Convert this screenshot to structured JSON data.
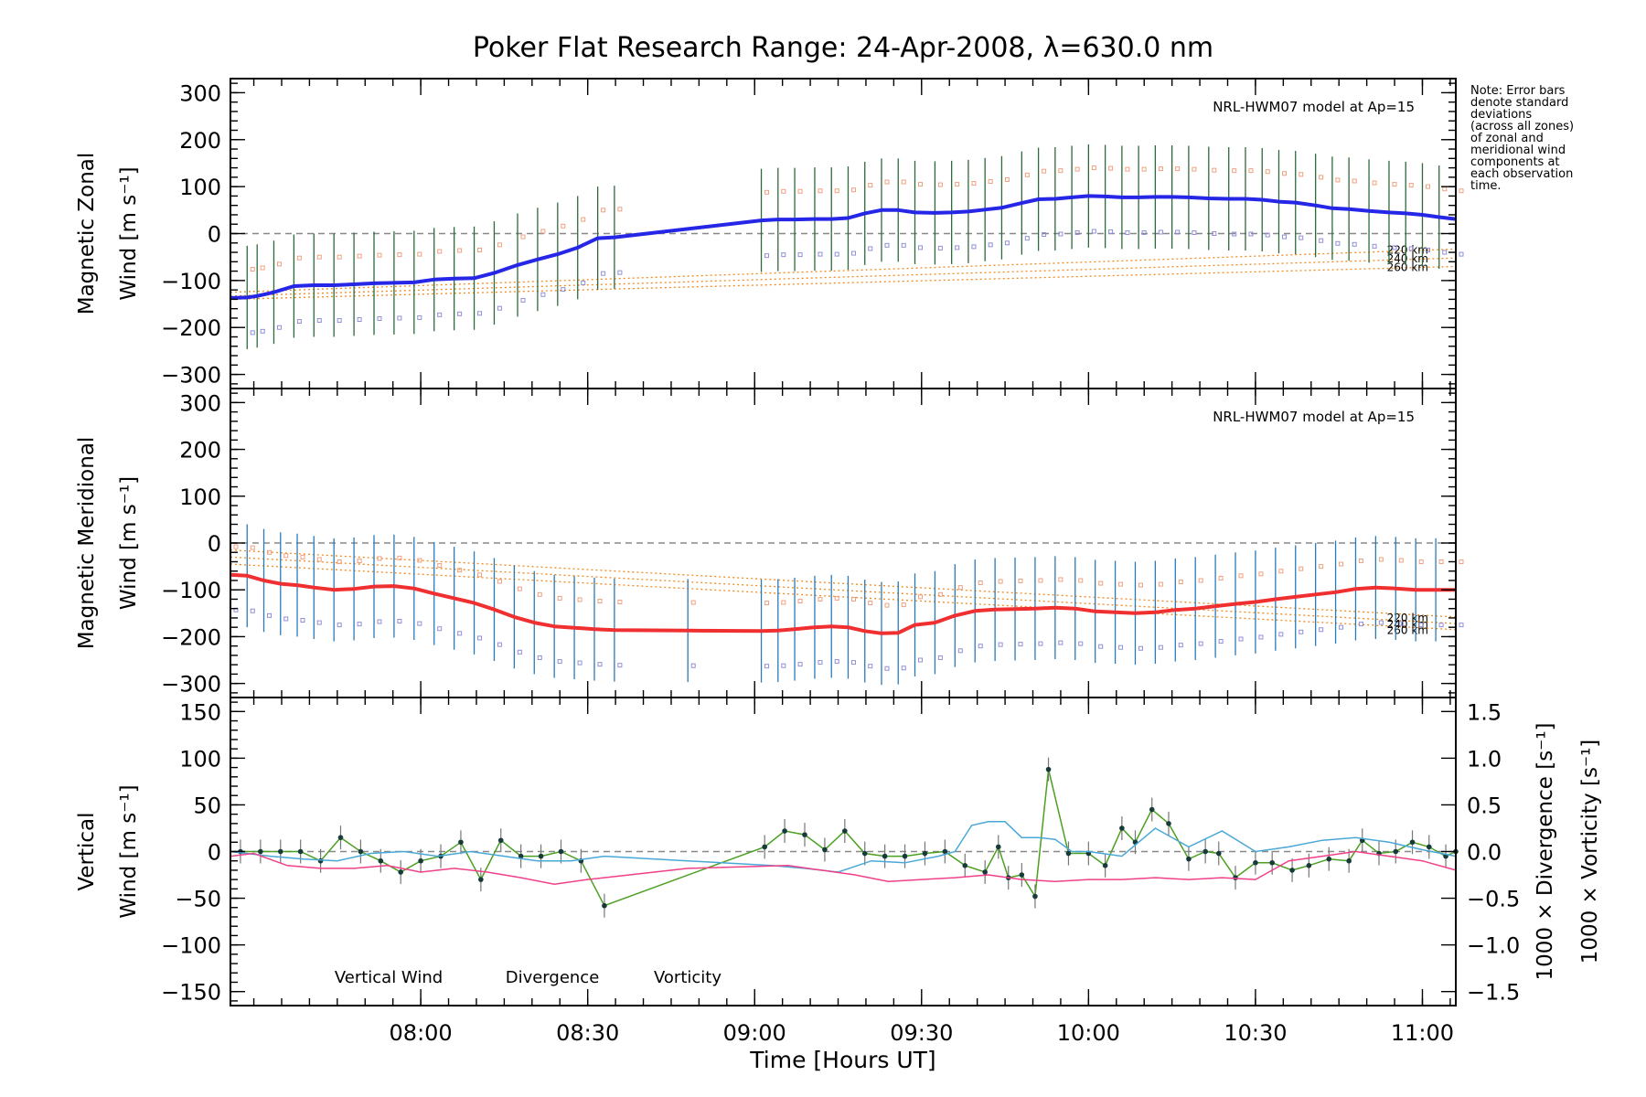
{
  "chart_data": {
    "type": "line",
    "title": "Poker Flat Research Range: 24-Apr-2008, λ=630.0 nm",
    "note": [
      "Note: Error bars",
      "denote standard",
      "deviations",
      "(across all zones)",
      "of zonal and",
      "meridional wind",
      "components at",
      "each observation",
      "time."
    ],
    "xlabel": "Time [Hours UT]",
    "xlim": [
      7.43,
      11.1
    ],
    "xticks": [
      {
        "value": 8.0,
        "label": "08:00"
      },
      {
        "value": 8.5,
        "label": "08:30"
      },
      {
        "value": 9.0,
        "label": "09:00"
      },
      {
        "value": 9.5,
        "label": "09:30"
      },
      {
        "value": 10.0,
        "label": "10:00"
      },
      {
        "value": 10.5,
        "label": "10:30"
      },
      {
        "value": 11.0,
        "label": "11:00"
      }
    ],
    "panels": [
      {
        "id": "zonal",
        "ylabel": [
          "Magnetic Zonal",
          "Wind [m s⁻¹]"
        ],
        "ylim": [
          -330,
          330
        ],
        "yticks": [
          -300,
          -200,
          -100,
          0,
          100,
          200,
          300
        ],
        "model_label": "NRL-HWM07 model at Ap=15",
        "model_lines": [
          {
            "name": "220 km",
            "start": -125,
            "end": -33
          },
          {
            "name": "240 km",
            "start": -133,
            "end": -52
          },
          {
            "name": "260 km",
            "start": -140,
            "end": -70
          }
        ],
        "series": [
          {
            "name": "Magnetic Zonal Wind",
            "color": "#2626e6",
            "x": [
              7.43,
              7.48,
              7.51,
              7.56,
              7.62,
              7.68,
              7.74,
              7.8,
              7.86,
              7.92,
              7.98,
              8.04,
              8.1,
              8.16,
              8.22,
              8.29,
              8.35,
              8.41,
              8.47,
              8.53,
              8.58,
              9.02,
              9.07,
              9.12,
              9.18,
              9.23,
              9.28,
              9.33,
              9.38,
              9.43,
              9.48,
              9.54,
              9.59,
              9.64,
              9.69,
              9.74,
              9.8,
              9.85,
              9.9,
              9.95,
              10.0,
              10.05,
              10.1,
              10.15,
              10.2,
              10.25,
              10.3,
              10.36,
              10.42,
              10.47,
              10.52,
              10.57,
              10.62,
              10.68,
              10.73,
              10.78,
              10.84,
              10.9,
              10.95,
              11.0,
              11.05,
              11.1
            ],
            "y": [
              -137,
              -136,
              -133,
              -125,
              -112,
              -110,
              -110,
              -108,
              -106,
              -105,
              -104,
              -98,
              -96,
              -95,
              -84,
              -67,
              -55,
              -44,
              -30,
              -10,
              -8,
              28,
              30,
              30,
              31,
              31,
              33,
              43,
              50,
              50,
              45,
              44,
              45,
              47,
              51,
              55,
              65,
              73,
              74,
              77,
              80,
              79,
              77,
              77,
              78,
              78,
              77,
              75,
              74,
              74,
              72,
              68,
              66,
              60,
              54,
              52,
              48,
              45,
              43,
              40,
              35,
              31
            ]
          }
        ]
      },
      {
        "id": "meridional",
        "ylabel": [
          "Magnetic Meridional",
          "Wind [m s⁻¹]"
        ],
        "ylim": [
          -330,
          330
        ],
        "yticks": [
          -300,
          -200,
          -100,
          0,
          100,
          200,
          300
        ],
        "model_label": "NRL-HWM07 model at Ap=15",
        "model_lines": [
          {
            "name": "220 km",
            "start": -15,
            "end": -158
          },
          {
            "name": "240 km",
            "start": -30,
            "end": -172
          },
          {
            "name": "260 km",
            "start": -45,
            "end": -185
          }
        ],
        "series": [
          {
            "name": "Magnetic Meridional Wind",
            "color": "#f03030",
            "x": [
              7.43,
              7.48,
              7.53,
              7.58,
              7.63,
              7.68,
              7.74,
              7.8,
              7.86,
              7.92,
              7.98,
              8.04,
              8.1,
              8.16,
              8.22,
              8.28,
              8.34,
              8.4,
              8.46,
              8.52,
              8.58,
              8.8,
              9.02,
              9.07,
              9.12,
              9.18,
              9.23,
              9.28,
              9.33,
              9.38,
              9.43,
              9.48,
              9.54,
              9.6,
              9.66,
              9.72,
              9.78,
              9.84,
              9.9,
              9.96,
              10.02,
              10.08,
              10.14,
              10.2,
              10.26,
              10.32,
              10.38,
              10.44,
              10.5,
              10.56,
              10.62,
              10.68,
              10.74,
              10.8,
              10.86,
              10.92,
              10.98,
              11.04,
              11.1
            ],
            "y": [
              -68,
              -70,
              -80,
              -87,
              -90,
              -95,
              -100,
              -98,
              -93,
              -92,
              -97,
              -108,
              -118,
              -128,
              -142,
              -158,
              -170,
              -178,
              -181,
              -184,
              -186,
              -187,
              -188,
              -187,
              -184,
              -180,
              -178,
              -180,
              -188,
              -193,
              -192,
              -175,
              -170,
              -155,
              -145,
              -142,
              -141,
              -140,
              -138,
              -140,
              -146,
              -148,
              -150,
              -148,
              -143,
              -140,
              -135,
              -130,
              -126,
              -120,
              -115,
              -110,
              -105,
              -98,
              -95,
              -97,
              -100,
              -100,
              -100
            ]
          }
        ]
      },
      {
        "id": "vertical",
        "ylabel": [
          "Vertical",
          "Wind [m s⁻¹]"
        ],
        "ylim": [
          -165,
          165
        ],
        "yticks": [
          -150,
          -100,
          -50,
          0,
          50,
          100,
          150
        ],
        "ylabel_right_1": "1000 × Divergence [s⁻¹]",
        "ylabel_right_2": "1000 × Vorticity [s⁻¹]",
        "y2lim": [
          -1.65,
          1.65
        ],
        "y2ticks": [
          -1.5,
          -1.0,
          -0.5,
          0.0,
          0.5,
          1.0,
          1.5
        ],
        "y2ticklabels": [
          "−1.5",
          "−1.0",
          "−0.5",
          "0.0",
          "0.5",
          "1.0",
          "1.5"
        ],
        "legend": [
          "Vertical Wind",
          "Divergence",
          "Vorticity"
        ],
        "series": [
          {
            "name": "Vertical Wind",
            "color": "#4aa020",
            "axis": "left",
            "x": [
              7.46,
              7.52,
              7.58,
              7.64,
              7.7,
              7.76,
              7.82,
              7.88,
              7.94,
              8.0,
              8.06,
              8.12,
              8.18,
              8.24,
              8.3,
              8.36,
              8.42,
              8.48,
              8.55,
              9.03,
              9.09,
              9.15,
              9.21,
              9.27,
              9.33,
              9.39,
              9.45,
              9.51,
              9.57,
              9.63,
              9.69,
              9.73,
              9.76,
              9.8,
              9.84,
              9.88,
              9.94,
              10.0,
              10.05,
              10.1,
              10.14,
              10.19,
              10.24,
              10.3,
              10.35,
              10.39,
              10.44,
              10.5,
              10.55,
              10.61,
              10.66,
              10.72,
              10.78,
              10.82,
              10.87,
              10.92,
              10.97,
              11.02,
              11.07,
              11.1
            ],
            "y": [
              0,
              0,
              0,
              0,
              -10,
              15,
              0,
              -10,
              -22,
              -10,
              -5,
              10,
              -30,
              12,
              -5,
              -5,
              0,
              -10,
              -58,
              5,
              22,
              18,
              2,
              22,
              -2,
              -5,
              -5,
              -2,
              0,
              -15,
              -22,
              5,
              -28,
              -25,
              -48,
              88,
              -2,
              -2,
              -15,
              25,
              10,
              45,
              30,
              -8,
              0,
              -2,
              -28,
              -12,
              -12,
              -20,
              -15,
              -8,
              -10,
              12,
              -2,
              0,
              10,
              5,
              -5,
              0
            ]
          },
          {
            "name": "Divergence",
            "color": "#4aa8d8",
            "axis": "right",
            "x": [
              7.43,
              7.55,
              7.65,
              7.75,
              7.85,
              7.95,
              8.05,
              8.15,
              8.25,
              8.35,
              8.45,
              8.55,
              8.8,
              9.05,
              9.15,
              9.25,
              9.35,
              9.45,
              9.55,
              9.6,
              9.65,
              9.7,
              9.75,
              9.8,
              9.85,
              9.9,
              9.95,
              10.0,
              10.1,
              10.2,
              10.3,
              10.4,
              10.5,
              10.6,
              10.7,
              10.8,
              10.9,
              11.0,
              11.1
            ],
            "y": [
              0.0,
              -0.05,
              -0.08,
              -0.1,
              -0.02,
              0.0,
              -0.05,
              0.0,
              -0.05,
              -0.1,
              -0.1,
              -0.05,
              -0.1,
              -0.15,
              -0.18,
              -0.22,
              -0.1,
              -0.12,
              -0.05,
              0.0,
              0.28,
              0.32,
              0.32,
              0.15,
              0.15,
              0.13,
              0.0,
              0.0,
              -0.05,
              0.25,
              0.05,
              0.22,
              0.0,
              0.05,
              0.12,
              0.15,
              0.1,
              0.02,
              -0.05
            ]
          },
          {
            "name": "Vorticity",
            "color": "#f0408a",
            "axis": "right",
            "x": [
              7.43,
              7.5,
              7.6,
              7.7,
              7.8,
              7.9,
              8.0,
              8.1,
              8.2,
              8.3,
              8.4,
              8.5,
              8.8,
              9.1,
              9.2,
              9.3,
              9.4,
              9.5,
              9.6,
              9.7,
              9.8,
              9.9,
              10.0,
              10.1,
              10.2,
              10.3,
              10.4,
              10.5,
              10.6,
              10.7,
              10.8,
              10.9,
              11.0,
              11.1
            ],
            "y": [
              -0.05,
              -0.02,
              -0.15,
              -0.18,
              -0.18,
              -0.15,
              -0.22,
              -0.18,
              -0.22,
              -0.28,
              -0.35,
              -0.3,
              -0.18,
              -0.15,
              -0.2,
              -0.25,
              -0.32,
              -0.3,
              -0.28,
              -0.25,
              -0.3,
              -0.32,
              -0.3,
              -0.3,
              -0.28,
              -0.3,
              -0.28,
              -0.3,
              -0.1,
              -0.05,
              0.0,
              -0.05,
              -0.1,
              -0.2
            ]
          }
        ]
      }
    ]
  }
}
